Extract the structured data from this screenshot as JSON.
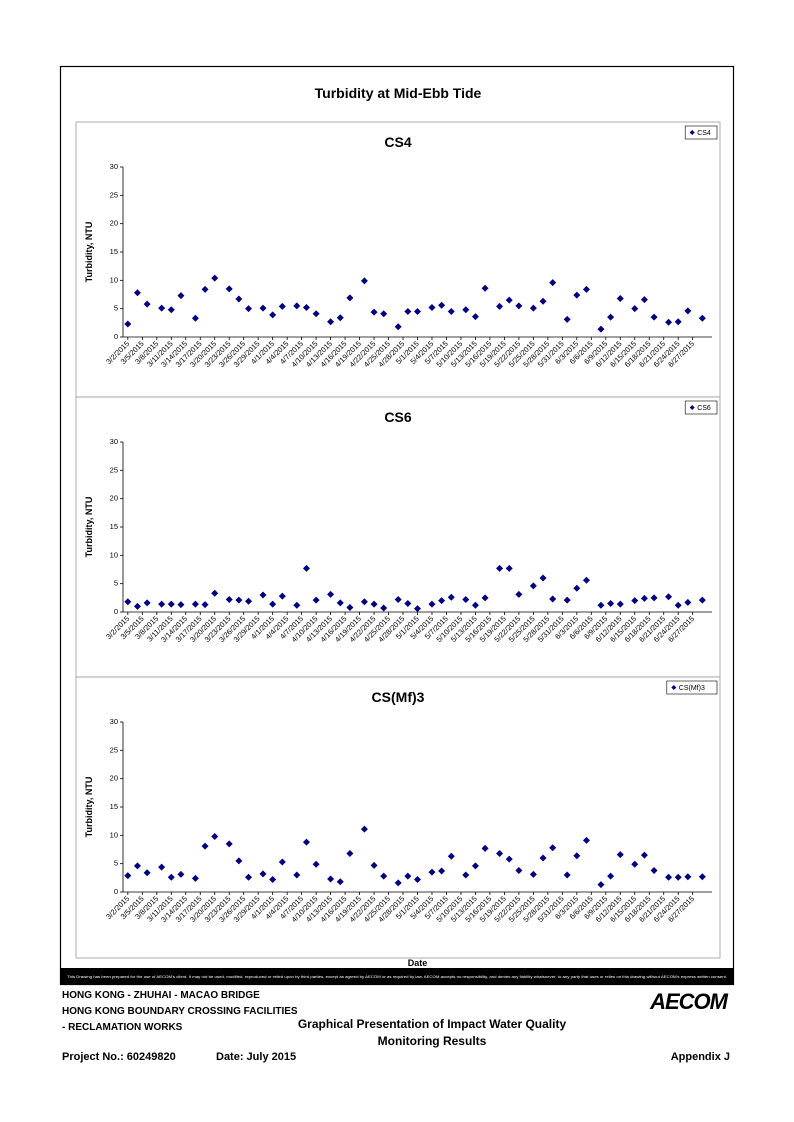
{
  "title": "Turbidity at Mid-Ebb Tide",
  "chart_data": [
    {
      "type": "scatter",
      "title": "CS4",
      "xlabel": "Date",
      "ylabel": "Turbidity, NTU",
      "x": [
        "3/2/2015",
        "3/4/2015",
        "3/6/2015",
        "3/9/2015",
        "3/11/2015",
        "3/13/2015",
        "3/16/2015",
        "3/18/2015",
        "3/20/2015",
        "3/23/2015",
        "3/25/2015",
        "3/27/2015",
        "3/30/2015",
        "4/1/2015",
        "4/3/2015",
        "4/6/2015",
        "4/8/2015",
        "4/10/2015",
        "4/13/2015",
        "4/15/2015",
        "4/17/2015",
        "4/20/2015",
        "4/22/2015",
        "4/24/2015",
        "4/27/2015",
        "4/29/2015",
        "5/1/2015",
        "5/4/2015",
        "5/6/2015",
        "5/8/2015",
        "5/11/2015",
        "5/13/2015",
        "5/15/2015",
        "5/18/2015",
        "5/20/2015",
        "5/22/2015",
        "5/25/2015",
        "5/27/2015",
        "5/29/2015",
        "6/1/2015",
        "6/3/2015",
        "6/5/2015",
        "6/8/2015",
        "6/10/2015",
        "6/12/2015",
        "6/15/2015",
        "6/17/2015",
        "6/19/2015",
        "6/22/2015",
        "6/24/2015",
        "6/26/2015",
        "6/29/2015"
      ],
      "series": [
        {
          "name": "CS4",
          "color": "#000080",
          "values": [
            2.3,
            7.8,
            5.8,
            5.1,
            4.8,
            7.3,
            3.3,
            8.4,
            10.4,
            8.5,
            6.7,
            5.0,
            5.1,
            3.9,
            5.4,
            5.5,
            5.2,
            4.1,
            2.7,
            3.4,
            6.9,
            9.9,
            4.4,
            4.1,
            1.8,
            4.5,
            4.5,
            5.2,
            5.6,
            4.5,
            4.8,
            3.6,
            8.6,
            5.4,
            6.5,
            5.5,
            5.1,
            6.3,
            9.6,
            3.1,
            7.4,
            8.4,
            1.4,
            3.5,
            6.8,
            5.0,
            6.6,
            3.5,
            2.6,
            2.7,
            4.6,
            3.3
          ]
        }
      ],
      "xlim": [
        "3/1/2015",
        "7/1/2015"
      ],
      "xticks": [
        "3/2/2015",
        "3/5/2015",
        "3/8/2015",
        "3/11/2015",
        "3/14/2015",
        "3/17/2015",
        "3/20/2015",
        "3/23/2015",
        "3/26/2015",
        "3/29/2015",
        "4/1/2015",
        "4/4/2015",
        "4/7/2015",
        "4/10/2015",
        "4/13/2015",
        "4/16/2015",
        "4/19/2015",
        "4/22/2015",
        "4/25/2015",
        "4/28/2015",
        "5/1/2015",
        "5/4/2015",
        "5/7/2015",
        "5/10/2015",
        "5/13/2015",
        "5/16/2015",
        "5/19/2015",
        "5/22/2015",
        "5/25/2015",
        "5/28/2015",
        "5/31/2015",
        "6/3/2015",
        "6/6/2015",
        "6/9/2015",
        "6/12/2015",
        "6/15/2015",
        "6/18/2015",
        "6/21/2015",
        "6/24/2015",
        "6/27/2015"
      ],
      "ylim": [
        0,
        30
      ],
      "yticks": [
        0,
        5,
        10,
        15,
        20,
        25,
        30
      ],
      "legend": "top-right",
      "marker": "diamond"
    },
    {
      "type": "scatter",
      "title": "CS6",
      "xlabel": "Date",
      "ylabel": "Turbidity, NTU",
      "x": [
        "3/2/2015",
        "3/4/2015",
        "3/6/2015",
        "3/9/2015",
        "3/11/2015",
        "3/13/2015",
        "3/16/2015",
        "3/18/2015",
        "3/20/2015",
        "3/23/2015",
        "3/25/2015",
        "3/27/2015",
        "3/30/2015",
        "4/1/2015",
        "4/3/2015",
        "4/6/2015",
        "4/8/2015",
        "4/10/2015",
        "4/13/2015",
        "4/15/2015",
        "4/17/2015",
        "4/20/2015",
        "4/22/2015",
        "4/24/2015",
        "4/27/2015",
        "4/29/2015",
        "5/1/2015",
        "5/4/2015",
        "5/6/2015",
        "5/8/2015",
        "5/11/2015",
        "5/13/2015",
        "5/15/2015",
        "5/18/2015",
        "5/20/2015",
        "5/22/2015",
        "5/25/2015",
        "5/27/2015",
        "5/29/2015",
        "6/1/2015",
        "6/3/2015",
        "6/5/2015",
        "6/8/2015",
        "6/10/2015",
        "6/12/2015",
        "6/15/2015",
        "6/17/2015",
        "6/19/2015",
        "6/22/2015",
        "6/24/2015",
        "6/26/2015",
        "6/29/2015"
      ],
      "series": [
        {
          "name": "CS6",
          "color": "#000080",
          "values": [
            1.8,
            1.0,
            1.6,
            1.4,
            1.4,
            1.3,
            1.4,
            1.3,
            3.3,
            2.2,
            2.1,
            1.9,
            3.0,
            1.4,
            2.8,
            1.2,
            7.7,
            2.1,
            3.1,
            1.6,
            0.8,
            1.8,
            1.4,
            0.7,
            2.2,
            1.5,
            0.6,
            1.4,
            2.0,
            2.6,
            2.2,
            1.2,
            2.5,
            7.7,
            7.7,
            3.1,
            4.6,
            6.0,
            2.3,
            2.1,
            4.2,
            5.6,
            1.2,
            1.5,
            1.4,
            2.0,
            2.4,
            2.5,
            2.7,
            1.2,
            1.7,
            2.1
          ]
        }
      ],
      "xlim": [
        "3/1/2015",
        "7/1/2015"
      ],
      "xticks": [
        "3/2/2015",
        "3/5/2015",
        "3/8/2015",
        "3/11/2015",
        "3/14/2015",
        "3/17/2015",
        "3/20/2015",
        "3/23/2015",
        "3/26/2015",
        "3/29/2015",
        "4/1/2015",
        "4/4/2015",
        "4/7/2015",
        "4/10/2015",
        "4/13/2015",
        "4/16/2015",
        "4/19/2015",
        "4/22/2015",
        "4/25/2015",
        "4/28/2015",
        "5/1/2015",
        "5/4/2015",
        "5/7/2015",
        "5/10/2015",
        "5/13/2015",
        "5/16/2015",
        "5/19/2015",
        "5/22/2015",
        "5/25/2015",
        "5/28/2015",
        "5/31/2015",
        "6/3/2015",
        "6/6/2015",
        "6/9/2015",
        "6/12/2015",
        "6/15/2015",
        "6/18/2015",
        "6/21/2015",
        "6/24/2015",
        "6/27/2015"
      ],
      "ylim": [
        0,
        30
      ],
      "yticks": [
        0,
        5,
        10,
        15,
        20,
        25,
        30
      ],
      "legend": "top-right",
      "marker": "diamond"
    },
    {
      "type": "scatter",
      "title": "CS(Mf)3",
      "xlabel": "Date",
      "ylabel": "Turbidity, NTU",
      "x": [
        "3/2/2015",
        "3/4/2015",
        "3/6/2015",
        "3/9/2015",
        "3/11/2015",
        "3/13/2015",
        "3/16/2015",
        "3/18/2015",
        "3/20/2015",
        "3/23/2015",
        "3/25/2015",
        "3/27/2015",
        "3/30/2015",
        "4/1/2015",
        "4/3/2015",
        "4/6/2015",
        "4/8/2015",
        "4/10/2015",
        "4/13/2015",
        "4/15/2015",
        "4/17/2015",
        "4/20/2015",
        "4/22/2015",
        "4/24/2015",
        "4/27/2015",
        "4/29/2015",
        "5/1/2015",
        "5/4/2015",
        "5/6/2015",
        "5/8/2015",
        "5/11/2015",
        "5/13/2015",
        "5/15/2015",
        "5/18/2015",
        "5/20/2015",
        "5/22/2015",
        "5/25/2015",
        "5/27/2015",
        "5/29/2015",
        "6/1/2015",
        "6/3/2015",
        "6/5/2015",
        "6/8/2015",
        "6/10/2015",
        "6/12/2015",
        "6/15/2015",
        "6/17/2015",
        "6/19/2015",
        "6/22/2015",
        "6/24/2015",
        "6/26/2015",
        "6/29/2015"
      ],
      "series": [
        {
          "name": "CS(Mf)3",
          "color": "#000080",
          "values": [
            2.9,
            4.6,
            3.4,
            4.4,
            2.6,
            3.1,
            2.4,
            8.1,
            9.8,
            8.5,
            5.5,
            2.6,
            3.2,
            2.2,
            5.3,
            3.0,
            8.8,
            4.9,
            2.3,
            1.8,
            6.8,
            11.1,
            4.7,
            2.8,
            1.6,
            2.8,
            2.2,
            3.5,
            3.7,
            6.3,
            3.0,
            4.6,
            7.7,
            6.8,
            5.8,
            3.8,
            3.1,
            6.0,
            7.8,
            3.0,
            6.4,
            9.1,
            1.3,
            2.8,
            6.6,
            4.9,
            6.5,
            3.8,
            2.6,
            2.6,
            2.7,
            2.7
          ]
        }
      ],
      "xlim": [
        "3/1/2015",
        "7/1/2015"
      ],
      "xticks": [
        "3/2/2015",
        "3/5/2015",
        "3/8/2015",
        "3/11/2015",
        "3/14/2015",
        "3/17/2015",
        "3/20/2015",
        "3/23/2015",
        "3/26/2015",
        "3/29/2015",
        "4/1/2015",
        "4/4/2015",
        "4/7/2015",
        "4/10/2015",
        "4/13/2015",
        "4/16/2015",
        "4/19/2015",
        "4/22/2015",
        "4/25/2015",
        "4/28/2015",
        "5/1/2015",
        "5/4/2015",
        "5/7/2015",
        "5/10/2015",
        "5/13/2015",
        "5/16/2015",
        "5/19/2015",
        "5/22/2015",
        "5/25/2015",
        "5/28/2015",
        "5/31/2015",
        "6/3/2015",
        "6/6/2015",
        "6/9/2015",
        "6/12/2015",
        "6/15/2015",
        "6/18/2015",
        "6/21/2015",
        "6/24/2015",
        "6/27/2015"
      ],
      "ylim": [
        0,
        30
      ],
      "yticks": [
        0,
        5,
        10,
        15,
        20,
        25,
        30
      ],
      "legend": "top-right",
      "marker": "diamond"
    }
  ],
  "disclaimer": "This Drawing has been prepared for the use of AECOM's client. It may not be used, modified, reproduced or relied upon by third parties, except as agreed by AECOM or as required by law. AECOM accepts no responsibility, and denies any liability whatsoever, to any party that uses or relies on this drawing without AECOM's express written consent.",
  "footer": {
    "project_lines": [
      "HONG KONG - ZHUHAI - MACAO BRIDGE",
      "HONG KONG BOUNDARY CROSSING FACILITIES",
      "- RECLAMATION WORKS"
    ],
    "heading": [
      "Graphical Presentation of Impact Water Quality",
      "Monitoring Results"
    ],
    "logo": "AECOM",
    "project_no": "Project No.: 60249820",
    "date": "Date: July 2015",
    "appendix": "Appendix J"
  }
}
